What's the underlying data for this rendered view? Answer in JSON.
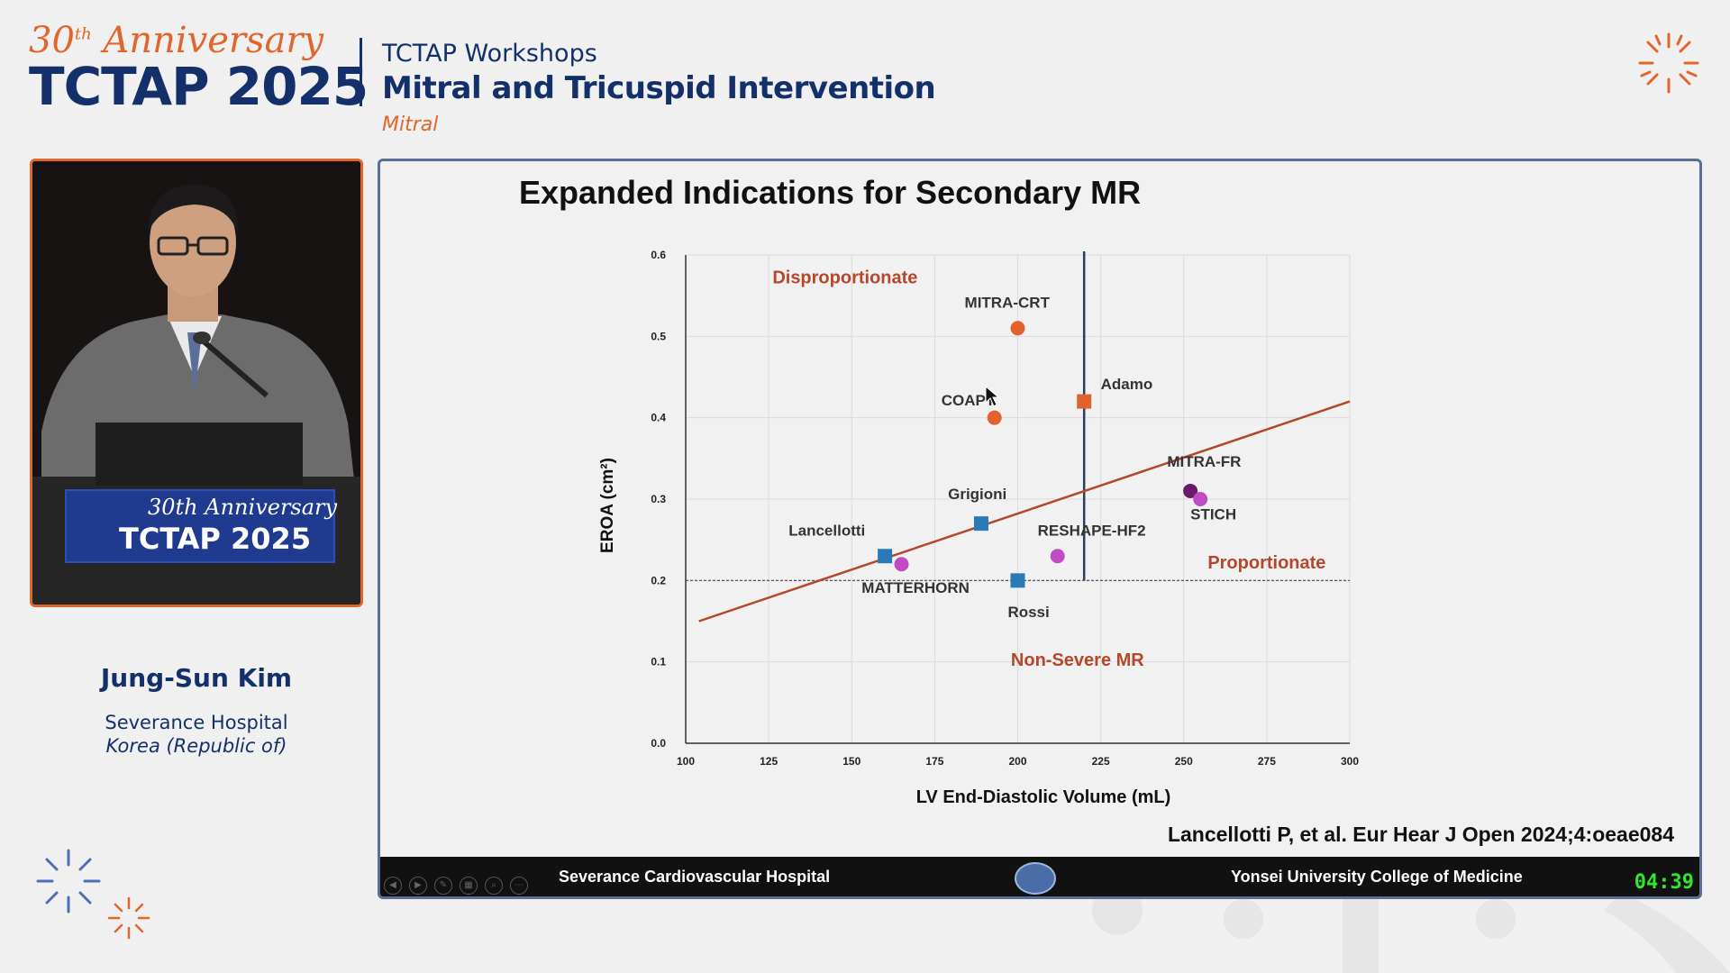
{
  "header": {
    "anniversary": "30",
    "anniversary_suffix": "th",
    "anniversary_word": "Anniversary",
    "brand": "TCTAP 2025",
    "workshops": "TCTAP Workshops",
    "session_title": "Mitral and Tricuspid Intervention",
    "track": "Mitral"
  },
  "speaker": {
    "name": "Jung-Sun Kim",
    "affiliation": "Severance Hospital",
    "country": "Korea (Republic of)",
    "podium_anniv": "30th Anniversary",
    "podium_brand": "TCTAP 2025"
  },
  "slide": {
    "title": "Expanded Indications for Secondary MR",
    "citation": "Lancellotti P, et al. Eur Hear J Open 2024;4:oeae084",
    "footer_left": "Severance Cardiovascular Hospital",
    "footer_right": "Yonsei University College of Medicine",
    "timer": "04:39"
  },
  "colors": {
    "navy": "#14306a",
    "orange": "#e2662c",
    "line": "#b5472b",
    "square": "#2a7ab8",
    "pink": "#c04bc4",
    "purple": "#6b1a6b"
  },
  "chart_data": {
    "type": "scatter",
    "xlabel": "LV End-Diastolic Volume (mL)",
    "ylabel": "EROA (cm²)",
    "xlim": [
      100,
      300
    ],
    "ylim": [
      0,
      0.6
    ],
    "xticks": [
      100,
      125,
      150,
      175,
      200,
      225,
      250,
      275,
      300
    ],
    "yticks": [
      "0.0",
      "0.1",
      "0.2",
      "0.3",
      "0.4",
      "0.5",
      "0.6"
    ],
    "vertical_line_x": 220,
    "horizontal_line_y": 0.2,
    "trend_line": [
      [
        104,
        0.15
      ],
      [
        300,
        0.42
      ]
    ],
    "regions": [
      {
        "label": "Disproportionate",
        "x": 148,
        "y": 0.565
      },
      {
        "label": "Proportionate",
        "x": 275,
        "y": 0.215
      },
      {
        "label": "Non-Severe MR",
        "x": 218,
        "y": 0.095
      }
    ],
    "points": [
      {
        "name": "MITRA-CRT",
        "x": 200,
        "y": 0.51,
        "marker": "circle",
        "color": "#e0632e",
        "lx": 184,
        "ly": 0.535
      },
      {
        "name": "COAPT",
        "x": 193,
        "y": 0.4,
        "marker": "circle",
        "color": "#e0632e",
        "lx": 177,
        "ly": 0.415
      },
      {
        "name": "Adamo",
        "x": 220,
        "y": 0.42,
        "marker": "square",
        "color": "#e0632e",
        "lx": 225,
        "ly": 0.435
      },
      {
        "name": "Grigioni",
        "x": 189,
        "y": 0.27,
        "marker": "square",
        "color": "#2a7ab8",
        "lx": 179,
        "ly": 0.3
      },
      {
        "name": "Lancellotti",
        "x": 160,
        "y": 0.23,
        "marker": "square",
        "color": "#2a7ab8",
        "lx": 131,
        "ly": 0.255
      },
      {
        "name": "MATTERHORN",
        "x": 165,
        "y": 0.22,
        "marker": "circle",
        "color": "#c04bc4",
        "lx": 153,
        "ly": 0.185
      },
      {
        "name": "Rossi",
        "x": 200,
        "y": 0.2,
        "marker": "square",
        "color": "#2a7ab8",
        "lx": 197,
        "ly": 0.155
      },
      {
        "name": "RESHAPE-HF2",
        "x": 212,
        "y": 0.23,
        "marker": "circle",
        "color": "#c04bc4",
        "lx": 206,
        "ly": 0.255
      },
      {
        "name": "MITRA-FR",
        "x": 252,
        "y": 0.31,
        "marker": "circle",
        "color": "#6b1a6b",
        "lx": 245,
        "ly": 0.34
      },
      {
        "name": "STICH",
        "x": 255,
        "y": 0.3,
        "marker": "circle",
        "color": "#c04bc4",
        "lx": 252,
        "ly": 0.275
      }
    ]
  }
}
